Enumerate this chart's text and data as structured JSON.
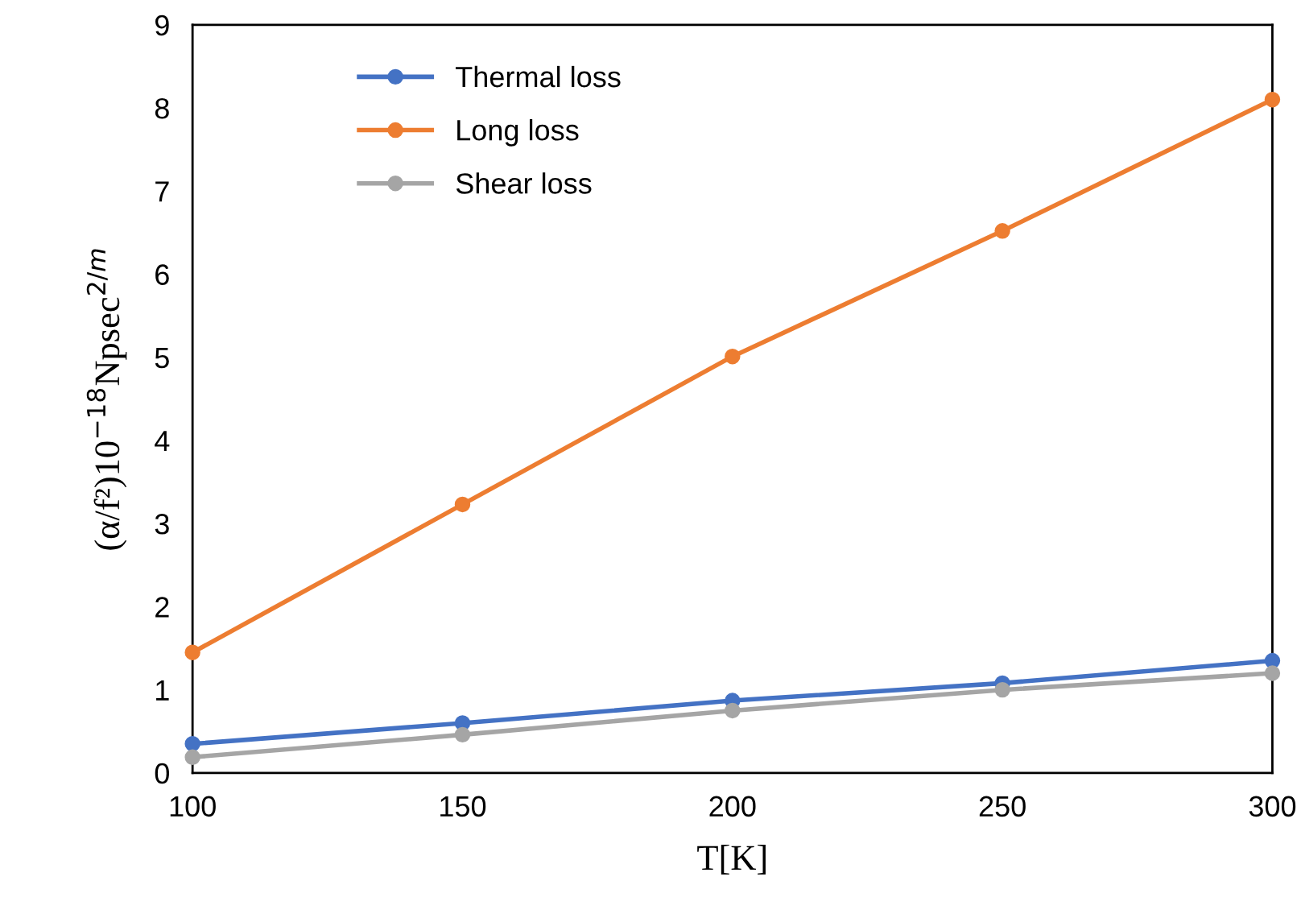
{
  "chart_data": {
    "type": "line",
    "xlabel": "T[K]",
    "ylabel": "(α/f²)10$^{−18}$Npsec$^{2/m}$",
    "x": [
      100,
      150,
      200,
      250,
      300
    ],
    "series": [
      {
        "name": "Thermal loss",
        "color": "#4472c4",
        "values": [
          0.35,
          0.6,
          0.87,
          1.08,
          1.35
        ]
      },
      {
        "name": "Long loss",
        "color": "#ed7d31",
        "values": [
          1.45,
          3.23,
          5.01,
          6.52,
          8.1
        ]
      },
      {
        "name": "Shear loss",
        "color": "#a5a5a5",
        "values": [
          0.19,
          0.46,
          0.75,
          1.0,
          1.2
        ]
      }
    ],
    "xlim": [
      100,
      300
    ],
    "xticks": [
      100,
      150,
      200,
      250,
      300
    ],
    "ylim": [
      0,
      9
    ],
    "yticks": [
      0,
      1,
      2,
      3,
      4,
      5,
      6,
      7,
      8,
      9
    ],
    "grid": false,
    "legend": "top left",
    "marker": "circle",
    "line_style": "solid"
  }
}
